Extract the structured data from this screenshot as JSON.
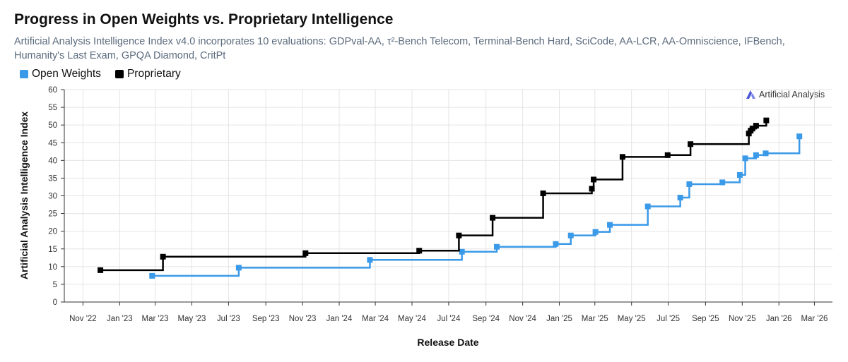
{
  "title": "Progress in Open Weights vs. Proprietary Intelligence",
  "subtitle": "Artificial Analysis Intelligence Index v4.0 incorporates 10 evaluations: GDPval-AA, τ²-Bench Telecom, Terminal-Bench Hard, SciCode, AA-LCR, AA-Omniscience, IFBench, Humanity's Last Exam, GPQA Diamond, CritPt",
  "brand": "Artificial Analysis",
  "colors": {
    "open_weights": "#3b9ae8",
    "proprietary": "#000000",
    "grid": "#e4e4e4",
    "axis": "#333333"
  },
  "chart_data": {
    "type": "line",
    "step": true,
    "title": "Progress in Open Weights vs. Proprietary Intelligence",
    "xlabel": "Release Date",
    "ylabel": "Artificial Analysis Intelligence Index",
    "ylim": [
      0,
      60
    ],
    "yticks": [
      0,
      5,
      10,
      15,
      20,
      25,
      30,
      35,
      40,
      45,
      50,
      55,
      60
    ],
    "xlim": [
      "2022-10-01",
      "2026-03-31"
    ],
    "xticks": [
      {
        "date": "2022-11-01",
        "label": "Nov '22"
      },
      {
        "date": "2023-01-01",
        "label": "Jan '23"
      },
      {
        "date": "2023-03-01",
        "label": "Mar '23"
      },
      {
        "date": "2023-05-01",
        "label": "May '23"
      },
      {
        "date": "2023-07-01",
        "label": "Jul '23"
      },
      {
        "date": "2023-09-01",
        "label": "Sep '23"
      },
      {
        "date": "2023-11-01",
        "label": "Nov '23"
      },
      {
        "date": "2024-01-01",
        "label": "Jan '24"
      },
      {
        "date": "2024-03-01",
        "label": "Mar '24"
      },
      {
        "date": "2024-05-01",
        "label": "May '24"
      },
      {
        "date": "2024-07-01",
        "label": "Jul '24"
      },
      {
        "date": "2024-09-01",
        "label": "Sep '24"
      },
      {
        "date": "2024-11-01",
        "label": "Nov '24"
      },
      {
        "date": "2025-01-01",
        "label": "Jan '25"
      },
      {
        "date": "2025-03-01",
        "label": "Mar '25"
      },
      {
        "date": "2025-05-01",
        "label": "May '25"
      },
      {
        "date": "2025-07-01",
        "label": "Jul '25"
      },
      {
        "date": "2025-09-01",
        "label": "Sep '25"
      },
      {
        "date": "2025-11-01",
        "label": "Nov '25"
      },
      {
        "date": "2026-01-01",
        "label": "Jan '26"
      },
      {
        "date": "2026-03-01",
        "label": "Mar '26"
      }
    ],
    "grid": true,
    "legend": "top-left",
    "series": [
      {
        "name": "Open Weights",
        "color": "#3b9ae8",
        "points": [
          {
            "x": "2023-02-24",
            "y": 7.4
          },
          {
            "x": "2023-07-18",
            "y": 9.7
          },
          {
            "x": "2024-02-21",
            "y": 11.9
          },
          {
            "x": "2024-07-23",
            "y": 14.2
          },
          {
            "x": "2024-09-19",
            "y": 15.6
          },
          {
            "x": "2024-12-26",
            "y": 16.4
          },
          {
            "x": "2025-01-20",
            "y": 18.8
          },
          {
            "x": "2025-03-02",
            "y": 19.8
          },
          {
            "x": "2025-03-26",
            "y": 21.8
          },
          {
            "x": "2025-05-28",
            "y": 27.0
          },
          {
            "x": "2025-07-21",
            "y": 29.5
          },
          {
            "x": "2025-08-05",
            "y": 33.3
          },
          {
            "x": "2025-09-29",
            "y": 33.8
          },
          {
            "x": "2025-10-28",
            "y": 35.9
          },
          {
            "x": "2025-11-06",
            "y": 40.6
          },
          {
            "x": "2025-11-24",
            "y": 41.5
          },
          {
            "x": "2025-12-10",
            "y": 42.0
          },
          {
            "x": "2026-02-04",
            "y": 46.8
          }
        ]
      },
      {
        "name": "Proprietary",
        "color": "#000000",
        "points": [
          {
            "x": "2022-11-30",
            "y": 9.0
          },
          {
            "x": "2023-03-14",
            "y": 12.8
          },
          {
            "x": "2023-11-06",
            "y": 13.8
          },
          {
            "x": "2024-05-13",
            "y": 14.5
          },
          {
            "x": "2024-07-18",
            "y": 18.8
          },
          {
            "x": "2024-09-12",
            "y": 23.8
          },
          {
            "x": "2024-12-05",
            "y": 30.7
          },
          {
            "x": "2025-02-24",
            "y": 32.0
          },
          {
            "x": "2025-02-27",
            "y": 34.6
          },
          {
            "x": "2025-04-16",
            "y": 41.0
          },
          {
            "x": "2025-06-30",
            "y": 41.5
          },
          {
            "x": "2025-08-07",
            "y": 44.6
          },
          {
            "x": "2025-11-12",
            "y": 47.6
          },
          {
            "x": "2025-11-15",
            "y": 48.4
          },
          {
            "x": "2025-11-18",
            "y": 49.0
          },
          {
            "x": "2025-11-24",
            "y": 49.8
          },
          {
            "x": "2025-12-11",
            "y": 51.3
          }
        ]
      }
    ]
  }
}
